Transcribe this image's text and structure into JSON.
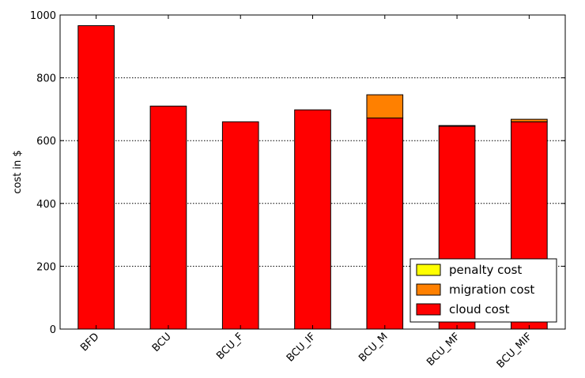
{
  "chart_data": {
    "type": "bar",
    "stacked": true,
    "categories": [
      "BFD",
      "BCU",
      "BCU_F",
      "BCU_IF",
      "BCU_M",
      "BCU_MF",
      "BCU_MIF"
    ],
    "series": [
      {
        "name": "cloud cost",
        "color": "#ff0000",
        "values": [
          966,
          710,
          660,
          698,
          672,
          646,
          660
        ]
      },
      {
        "name": "migration cost",
        "color": "#ff8000",
        "values": [
          0,
          0,
          0,
          0,
          74,
          2,
          8
        ]
      },
      {
        "name": "penalty cost",
        "color": "#ffff00",
        "values": [
          0,
          0,
          0,
          0,
          0,
          0,
          0
        ]
      }
    ],
    "title": "",
    "xlabel": "",
    "ylabel": "cost in $",
    "ylim": [
      0,
      1000
    ],
    "yticks": [
      0,
      200,
      400,
      600,
      800,
      1000
    ],
    "grid": "y-dotted",
    "legend_position": "lower-right",
    "legend_order": [
      "penalty cost",
      "migration cost",
      "cloud cost"
    ]
  }
}
